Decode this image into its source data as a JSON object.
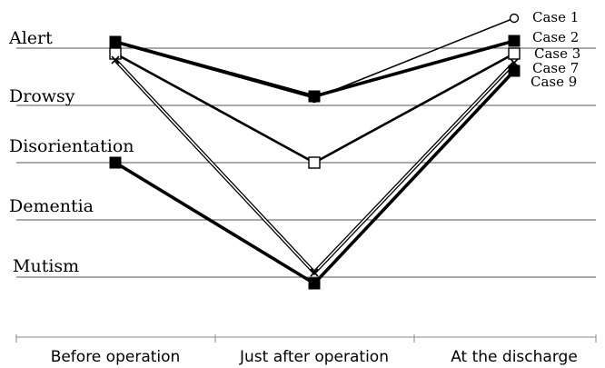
{
  "chart_data": {
    "type": "line",
    "title": "",
    "xlabel": "",
    "ylabel": "",
    "categories": [
      "Before operation",
      "Just after operation",
      "At the discharge"
    ],
    "y_levels": [
      "Alert",
      "Drowsy",
      "Disorientation",
      "Dementia",
      "Mutism"
    ],
    "grid": true,
    "legend_placement": "right, next to line ends",
    "series": [
      {
        "name": "Case 1",
        "marker": "open-circle",
        "values": [
          "Alert",
          "Drowsy",
          "Alert"
        ]
      },
      {
        "name": "Case 2",
        "marker": "filled-square",
        "values": [
          "Alert",
          "Drowsy",
          "Alert"
        ]
      },
      {
        "name": "Case 3",
        "marker": "open-square",
        "values": [
          "Alert",
          "Disorientation",
          "Alert"
        ]
      },
      {
        "name": "Case 7",
        "marker": "cross",
        "values": [
          "Alert",
          "Mutism",
          "Alert"
        ]
      },
      {
        "name": "Case 9",
        "marker": "filled-square",
        "values": [
          "Disorientation",
          "Mutism",
          "Alert"
        ]
      }
    ]
  }
}
